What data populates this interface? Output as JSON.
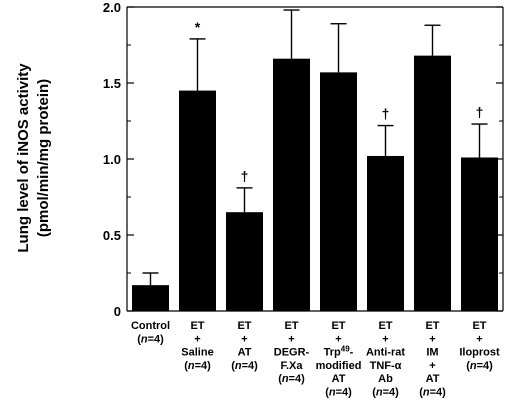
{
  "chart_data": {
    "type": "bar",
    "ylabel_lines": [
      "Lung level of iNOS activity",
      "(pmol/min/mg protein)"
    ],
    "ylim": [
      0,
      2.0
    ],
    "yticks": [
      "0",
      "0.5",
      "1.0",
      "1.5",
      "2.0"
    ],
    "grid": false,
    "legend": "none",
    "bar_color": "#000000",
    "categories": [
      [
        "Control",
        "(n=4)"
      ],
      [
        "ET",
        "+",
        "Saline",
        "(n=4)"
      ],
      [
        "ET",
        "+",
        "AT",
        "(n=4)"
      ],
      [
        "ET",
        "+",
        "DEGR-",
        "F.Xa",
        "(n=4)"
      ],
      [
        "ET",
        "+",
        "Trp49-",
        "modified",
        "AT",
        "(n=4)"
      ],
      [
        "ET",
        "+",
        "Anti-rat",
        "TNF-α",
        "Ab",
        "(n=4)"
      ],
      [
        "ET",
        "+",
        "IM",
        "+",
        "AT",
        "(n=4)"
      ],
      [
        "ET",
        "+",
        "Iloprost",
        "(n=4)"
      ]
    ],
    "values": [
      0.17,
      1.45,
      0.65,
      1.66,
      1.57,
      1.02,
      1.68,
      1.01
    ],
    "errors": [
      0.08,
      0.34,
      0.16,
      0.32,
      0.32,
      0.2,
      0.2,
      0.22
    ],
    "annotations": [
      "",
      "*",
      "†",
      "",
      "",
      "†",
      "",
      "†"
    ]
  }
}
